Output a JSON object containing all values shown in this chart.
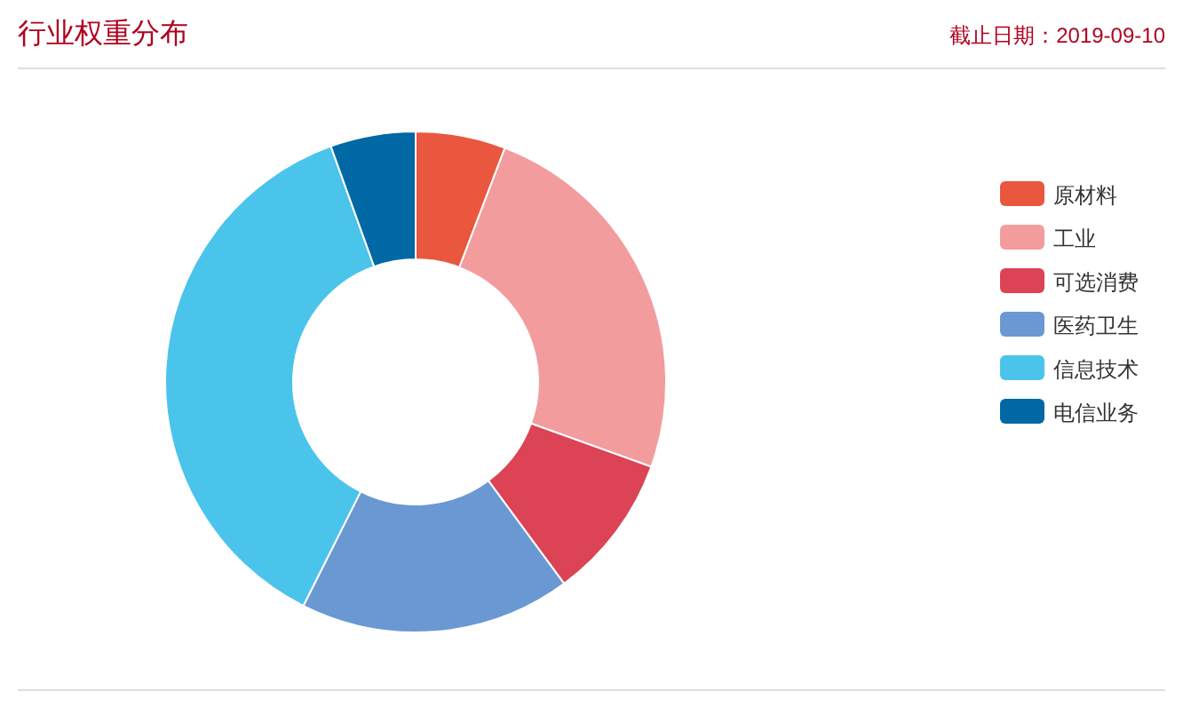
{
  "chart_data": {
    "type": "donut",
    "title": "行业权重分布",
    "subtitle": "截止日期：2019-09-10",
    "legend": "right",
    "categories": [
      "原材料",
      "工业",
      "可选消费",
      "医药卫生",
      "信息技术",
      "电信业务"
    ],
    "values": [
      5.8,
      24.7,
      9.4,
      17.5,
      37.1,
      5.5
    ],
    "colors": [
      "#e9573f",
      "#f39c9e",
      "#dc4355",
      "#6a98d3",
      "#4bc4ec",
      "#0068a5"
    ]
  }
}
